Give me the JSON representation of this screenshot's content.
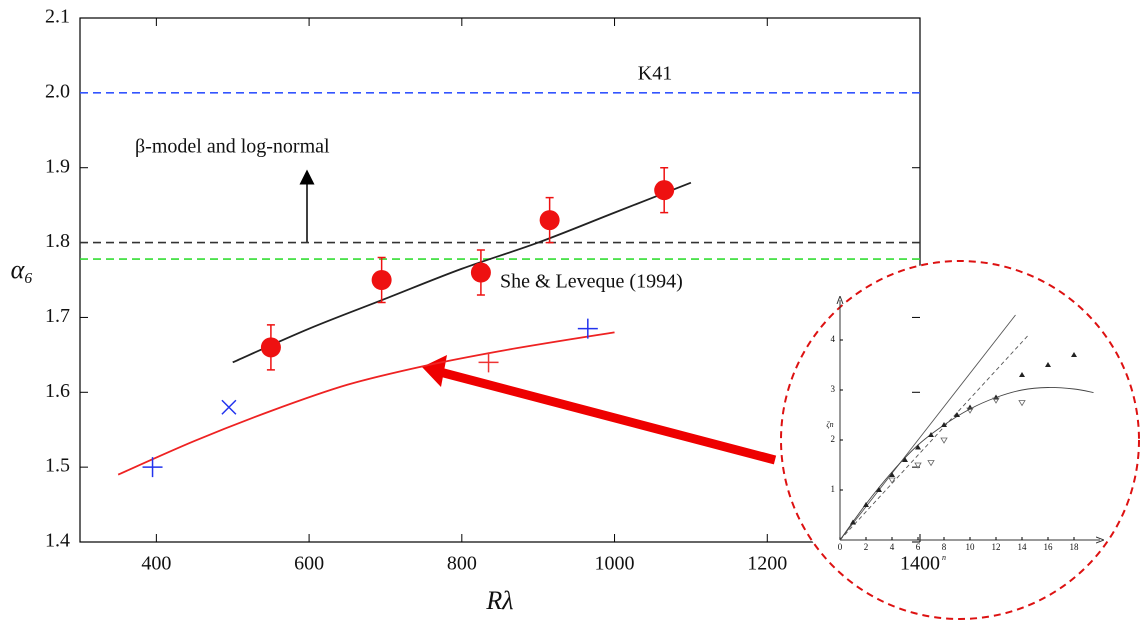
{
  "chart_data": [
    {
      "type": "scatter",
      "xlabel": "Rλ",
      "ylabel": "α₆",
      "xlim": [
        300,
        1400
      ],
      "ylim": [
        1.4,
        2.1
      ],
      "xticks": [
        400,
        600,
        800,
        1000,
        1200,
        1400
      ],
      "yticks": [
        {
          "value": 1.4,
          "label": "1.4"
        },
        {
          "value": 1.5,
          "label": "1.5"
        },
        {
          "value": 1.6,
          "label": "1.6"
        },
        {
          "value": 1.7,
          "label": "1.7"
        },
        {
          "value": 1.8,
          "label": "1.8"
        },
        {
          "value": 1.9,
          "label": "1.9"
        },
        {
          "value": 2.0,
          "label": "2.0"
        },
        {
          "value": 2.1,
          "label": "2.1"
        }
      ],
      "hlines": [
        {
          "value": 2.0,
          "color": "#3355ff",
          "label": "K41"
        },
        {
          "value": 1.8,
          "color": "#333333",
          "label": "β-model and log-normal"
        },
        {
          "value": 1.778,
          "color": "#33dd33",
          "label": "She & Leveque (1994)"
        }
      ],
      "series": [
        {
          "line": "solid",
          "color": "#222222",
          "x": [
            500,
            600,
            700,
            800,
            900,
            1000,
            1100
          ],
          "y": [
            1.64,
            1.685,
            1.725,
            1.765,
            1.8,
            1.84,
            1.88
          ]
        },
        {
          "line": "solid",
          "color": "#ee2222",
          "x": [
            350,
            450,
            550,
            650,
            750,
            850,
            950,
            1000
          ],
          "y": [
            1.49,
            1.535,
            1.575,
            1.61,
            1.635,
            1.655,
            1.672,
            1.68
          ]
        },
        {
          "marker": "circle",
          "color": "#ee1111",
          "x": [
            550,
            695,
            825,
            915,
            1065
          ],
          "y": [
            1.66,
            1.75,
            1.76,
            1.83,
            1.87
          ],
          "errors": [
            0.03,
            0.03,
            0.03,
            0.03,
            0.03
          ]
        },
        {
          "marker": "plus",
          "color": "#2233ee",
          "x": [
            395,
            965
          ],
          "y": [
            1.5,
            1.685
          ]
        },
        {
          "marker": "x",
          "color": "#2233ee",
          "x": [
            495
          ],
          "y": [
            1.58
          ]
        },
        {
          "marker": "plus",
          "color": "#ee3333",
          "x": [
            835
          ],
          "y": [
            1.64
          ]
        }
      ]
    },
    {
      "type": "scatter",
      "xlabel": "n",
      "ylabel": "ζn",
      "xlim": [
        0,
        20
      ],
      "ylim": [
        0,
        4.5
      ],
      "xticks": [
        0,
        2,
        4,
        6,
        8,
        10,
        12,
        14,
        16,
        18
      ],
      "yticks": [
        1,
        2,
        3,
        4
      ],
      "series": [
        {
          "line": "solid",
          "color": "#555555",
          "x": [
            0,
            13.5
          ],
          "y": [
            0,
            4.5
          ]
        },
        {
          "line": "dashed",
          "color": "#555555",
          "x": [
            0,
            14.5
          ],
          "y": [
            0,
            4.1
          ]
        },
        {
          "line": "solid",
          "color": "#444444",
          "x": [
            0,
            2,
            4,
            6,
            8,
            10,
            12,
            14,
            16,
            18,
            19.5
          ],
          "y": [
            0,
            0.72,
            1.36,
            1.9,
            2.3,
            2.62,
            2.85,
            3.0,
            3.05,
            3.02,
            2.95
          ]
        },
        {
          "marker": "triangle",
          "color": "#222222",
          "x": [
            1,
            2,
            3,
            4,
            5,
            6,
            7,
            8,
            9,
            10,
            12,
            14,
            16,
            18
          ],
          "y": [
            0.35,
            0.7,
            1.0,
            1.3,
            1.6,
            1.85,
            2.1,
            2.3,
            2.5,
            2.65,
            2.85,
            3.3,
            3.5,
            3.7
          ]
        },
        {
          "marker": "triangle-down",
          "color": "#666666",
          "x": [
            4,
            6,
            7,
            8,
            10,
            12,
            14
          ],
          "y": [
            1.2,
            1.5,
            1.55,
            2.0,
            2.6,
            2.8,
            2.75
          ]
        }
      ]
    }
  ]
}
